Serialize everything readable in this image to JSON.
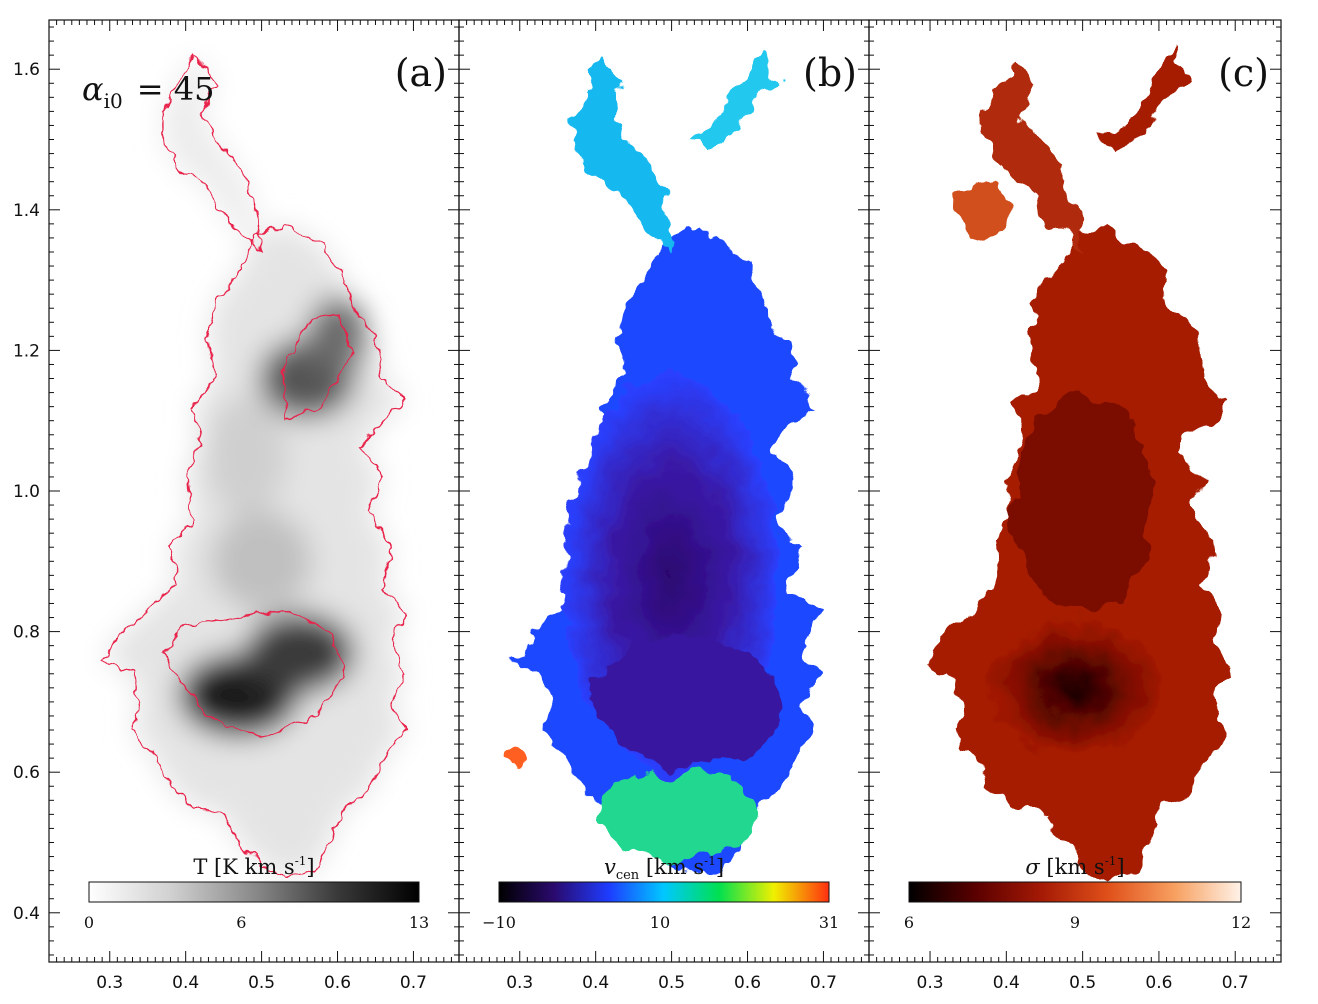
{
  "chart_data": {
    "type": "heatmap",
    "x_ticks": [
      0.3,
      0.4,
      0.5,
      0.6,
      0.7
    ],
    "x_tick_labels": [
      "0.3",
      "0.4",
      "0.5",
      "0.6",
      "0.7"
    ],
    "y_ticks": [
      0.4,
      0.6,
      0.8,
      1.0,
      1.2,
      1.4,
      1.6
    ],
    "y_tick_labels": [
      "0.4",
      "0.6",
      "0.8",
      "1.0",
      "1.2",
      "1.4",
      "1.6"
    ],
    "xlim": [
      0.22,
      0.76
    ],
    "ylim": [
      0.33,
      1.67
    ],
    "annotation": {
      "alpha_symbol": "α",
      "alpha_subscript": "i0",
      "alpha_value": "=  45"
    },
    "panels": [
      {
        "label": "(a)",
        "quantity": "T [K km s",
        "quantity_unit_sup": "-1",
        "quantity_close": "]",
        "colormap": "gray",
        "color_stops": [
          "#ffffff",
          "#d0d0d0",
          "#8a8a8a",
          "#3a3a3a",
          "#000000"
        ],
        "cbar_range": [
          0,
          13
        ],
        "cbar_ticks": [
          "0",
          "6",
          "13"
        ],
        "contour_color": "#e8204a"
      },
      {
        "label": "(b)",
        "quantity_main": "v",
        "quantity_sub": "cen",
        "quantity": " [km s",
        "quantity_unit_sup": "-1",
        "quantity_close": "]",
        "colormap": "rainbow",
        "color_stops": [
          "#000000",
          "#2a0a6e",
          "#1e3cff",
          "#00c8ff",
          "#00e050",
          "#f0f000",
          "#ff3010"
        ],
        "cbar_range": [
          -10,
          31
        ],
        "cbar_ticks": [
          "−10",
          "10",
          "31"
        ]
      },
      {
        "label": "(c)",
        "quantity_main": "σ",
        "quantity": " [km s",
        "quantity_unit_sup": "-1",
        "quantity_close": "]",
        "colormap": "heat",
        "color_stops": [
          "#000000",
          "#5a0000",
          "#a51a05",
          "#e0501a",
          "#f7a060",
          "#fff2e8"
        ],
        "cbar_range": [
          6,
          12
        ],
        "cbar_ticks": [
          "6",
          "9",
          "12"
        ]
      }
    ]
  }
}
